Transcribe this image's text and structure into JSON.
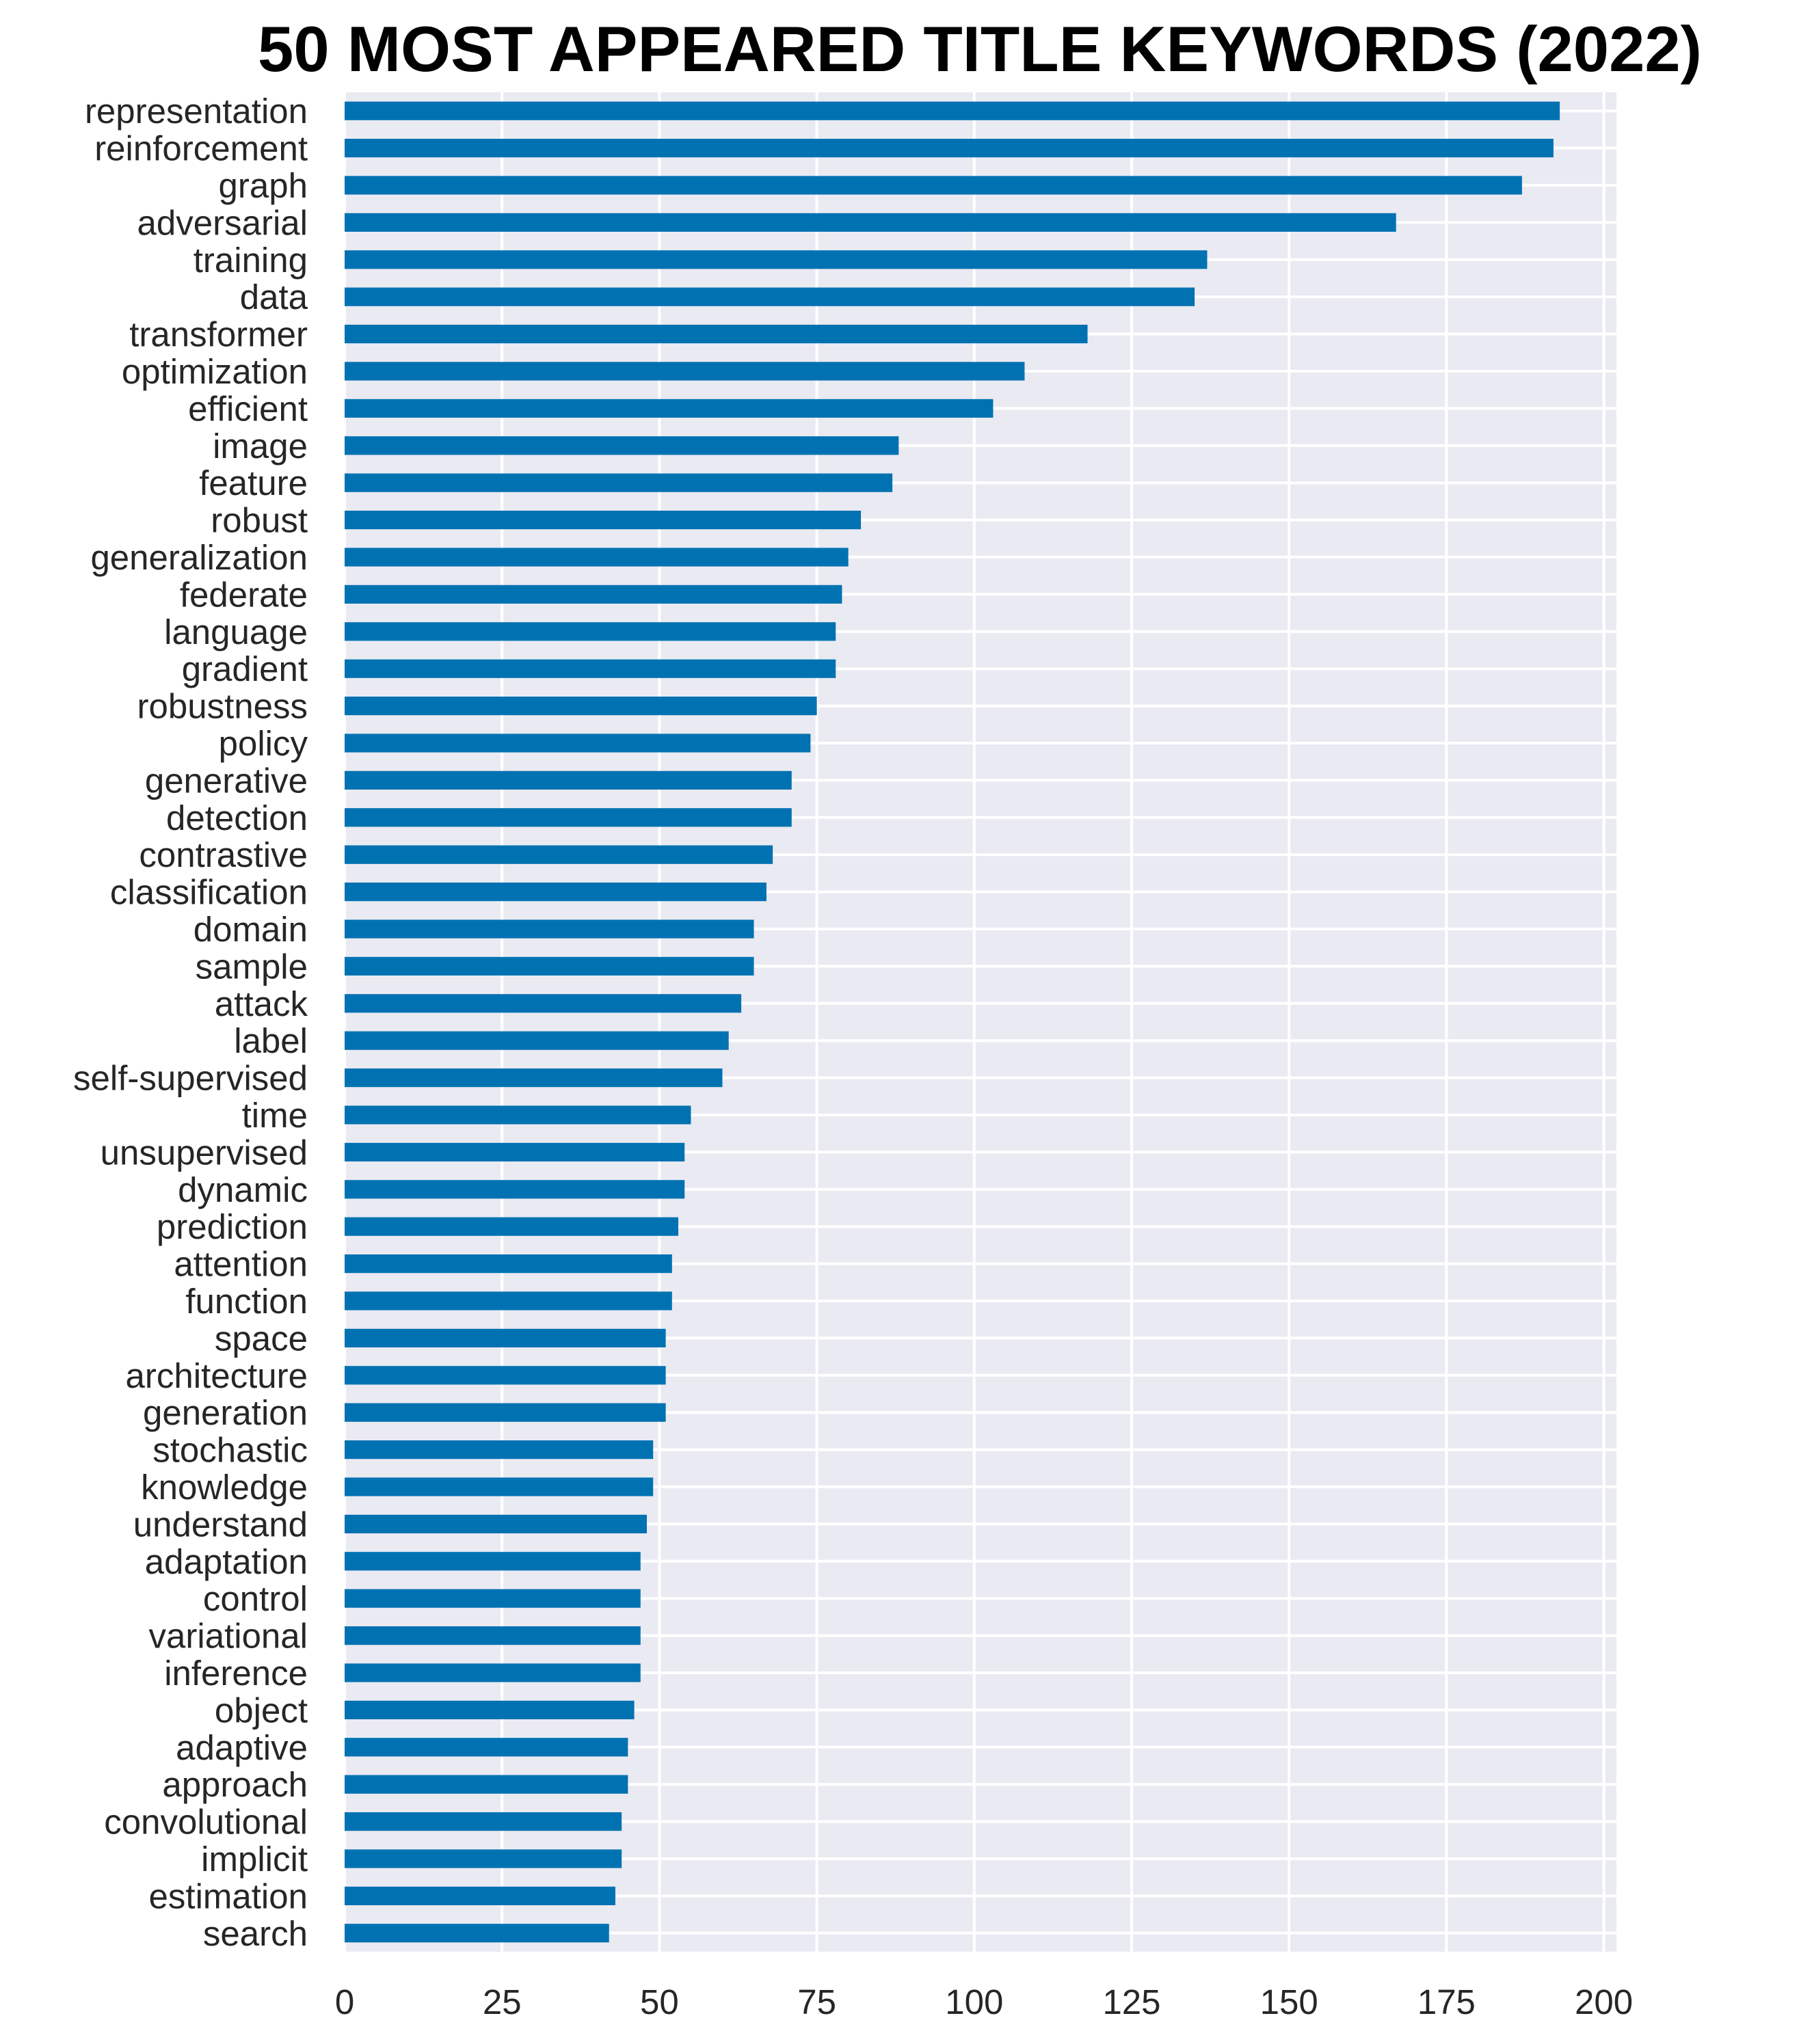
{
  "chart_data": {
    "type": "bar",
    "orientation": "horizontal",
    "title": "50 MOST APPEARED TITLE KEYWORDS (2022)",
    "xlabel": "",
    "ylabel": "",
    "xlim": [
      0,
      202
    ],
    "xticks": [
      0,
      25,
      50,
      75,
      100,
      125,
      150,
      175,
      200
    ],
    "grid": true,
    "colors": {
      "bar": "#0072b2",
      "background": "#eaeaf2",
      "grid": "#ffffff",
      "text": "#262626",
      "title": "#000000"
    },
    "categories": [
      "representation",
      "reinforcement",
      "graph",
      "adversarial",
      "training",
      "data",
      "transformer",
      "optimization",
      "efficient",
      "image",
      "feature",
      "robust",
      "generalization",
      "federate",
      "language",
      "gradient",
      "robustness",
      "policy",
      "generative",
      "detection",
      "contrastive",
      "classification",
      "domain",
      "sample",
      "attack",
      "label",
      "self-supervised",
      "time",
      "unsupervised",
      "dynamic",
      "prediction",
      "attention",
      "function",
      "space",
      "architecture",
      "generation",
      "stochastic",
      "knowledge",
      "understand",
      "adaptation",
      "control",
      "variational",
      "inference",
      "object",
      "adaptive",
      "approach",
      "convolutional",
      "implicit",
      "estimation",
      "search"
    ],
    "values": [
      193,
      192,
      187,
      167,
      137,
      135,
      118,
      108,
      103,
      88,
      87,
      82,
      80,
      79,
      78,
      78,
      75,
      74,
      71,
      71,
      68,
      67,
      65,
      65,
      63,
      61,
      60,
      55,
      54,
      54,
      53,
      52,
      52,
      51,
      51,
      51,
      49,
      49,
      48,
      47,
      47,
      47,
      47,
      46,
      45,
      45,
      44,
      44,
      43,
      42
    ]
  }
}
